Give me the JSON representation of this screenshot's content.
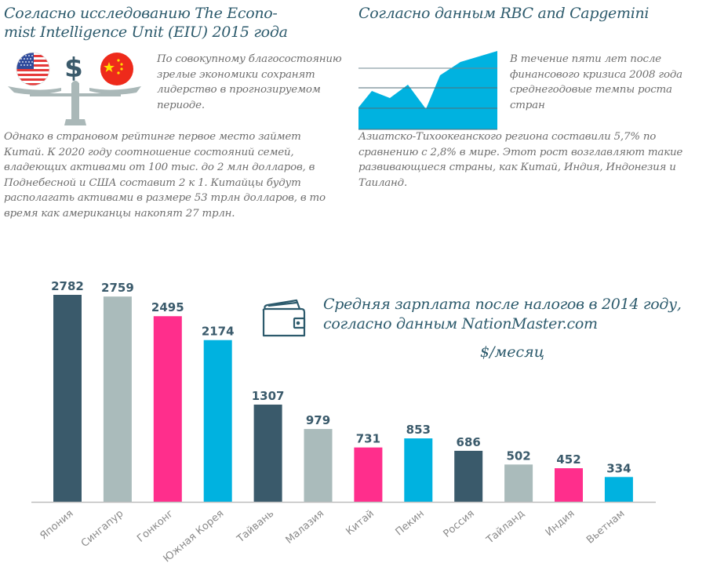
{
  "left_section": {
    "heading": "Согласно исследованию The Econo-mist Intelligence Unit (EIU) 2015 года",
    "heading_line1": "Согласно исследованию The Econo-",
    "heading_line2": "mist Intelligence Unit (EIU) 2015 года",
    "icon": "scale-usa-china-dollar-icon",
    "paragraph_part1": "По совокупному благосостоянию зрелые экономики сохранят лидерство в прогнозируемом периоде.",
    "paragraph_part2": "Однако в страновом рейтинге первое место займет Китай. К 2020 году соотношение состояний семей, владеющих активами от 100 тыс. до 2 млн долларов, в Поднебесной и США составит 2 к 1. Китайцы будут располагать активами в размере 53 трлн долларов, в то время как американцы накопят 27 трлн."
  },
  "right_section": {
    "heading": "Согласно данным RBC and Capgemini",
    "icon": "area-growth-chart-icon",
    "paragraph_part1": "В течение пяти лет после финансового кризиса 2008 года среднегодовые темпы роста стран",
    "paragraph_part2": "Азиатско-Тихоокеанского региона составили 5,7% по сравнению с 2,8% в мире. Этот рост возглавляют такие развивающиеся страны, как Китай, Индия, Индонезия и Таиланд."
  },
  "colors": {
    "dark": "#3a5a6b",
    "gray": "#aabbbb",
    "pink": "#ff2e8c",
    "cyan": "#00b2e0",
    "heading": "#2c5a6c",
    "text": "#6e6e6e"
  },
  "chart_data": {
    "type": "bar",
    "title": "Средняя зарплата после налогов в 2014 году, согласно данным NationMaster.com",
    "title_line1": "Средняя зарплата после налогов в 2014 году,",
    "title_line2": "согласно данным NationMaster.com",
    "ylabel": "$/месяц",
    "xlabel": "",
    "icon": "wallet-icon",
    "categories": [
      "Япония",
      "Сингапур",
      "Гонконг",
      "Южная Корея",
      "Тайвань",
      "Малазия",
      "Китай",
      "Пекин",
      "Россия",
      "Тайланд",
      "Индия",
      "Вьетнам"
    ],
    "values": [
      2782,
      2759,
      2495,
      2174,
      1307,
      979,
      731,
      853,
      686,
      502,
      452,
      334
    ],
    "bar_colors": [
      "#3a5a6b",
      "#aabbbb",
      "#ff2e8c",
      "#00b2e0",
      "#3a5a6b",
      "#aabbbb",
      "#ff2e8c",
      "#00b2e0",
      "#3a5a6b",
      "#aabbbb",
      "#ff2e8c",
      "#00b2e0"
    ],
    "ylim": [
      0,
      2782
    ],
    "grid": false,
    "legend": "none",
    "data_labels": true
  }
}
